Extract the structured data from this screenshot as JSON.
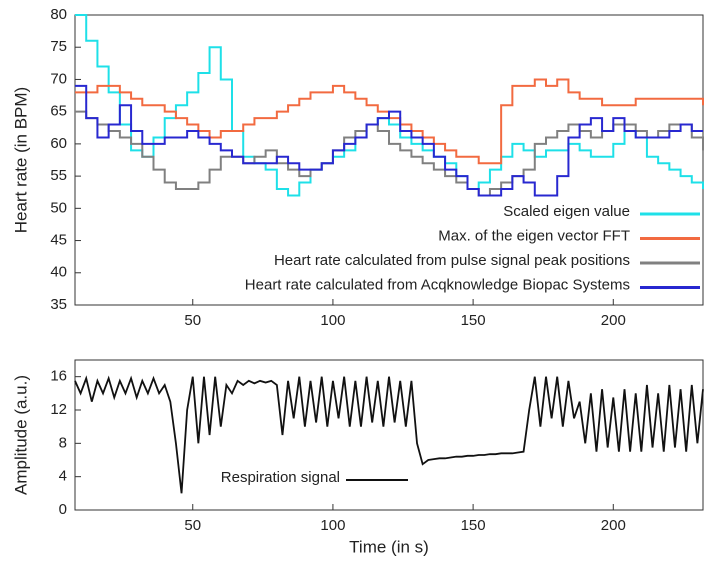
{
  "chart_data": [
    {
      "type": "line",
      "step": true,
      "ylabel": "Heart rate (in BPM)",
      "x": [
        8,
        12,
        16,
        20,
        24,
        28,
        32,
        36,
        40,
        44,
        48,
        52,
        56,
        60,
        64,
        68,
        72,
        76,
        80,
        84,
        88,
        92,
        96,
        100,
        104,
        108,
        112,
        116,
        120,
        124,
        128,
        132,
        136,
        140,
        144,
        148,
        152,
        156,
        160,
        164,
        168,
        172,
        176,
        180,
        184,
        188,
        192,
        196,
        200,
        204,
        208,
        212,
        216,
        220,
        224,
        228,
        232
      ],
      "series": [
        {
          "name": "Scaled eigen value",
          "color": "#1ee0e8",
          "values": [
            80,
            76,
            72,
            68,
            63,
            59,
            58,
            61,
            64,
            66,
            68,
            71,
            75,
            70,
            62,
            58,
            57,
            56,
            53,
            52,
            54,
            56,
            57,
            58,
            59,
            61,
            63,
            64,
            63,
            61,
            60,
            59,
            58,
            57,
            55,
            53,
            54,
            56,
            58,
            60,
            59,
            58,
            59,
            59,
            60,
            59,
            58,
            58,
            60,
            62,
            61,
            58,
            57,
            56,
            55,
            54,
            53
          ]
        },
        {
          "name": "Max. of the eigen vector FFT",
          "color": "#f26a40",
          "values": [
            68,
            68,
            69,
            69,
            68,
            67,
            66,
            66,
            65,
            64,
            63,
            62,
            61,
            62,
            62,
            63,
            64,
            64,
            65,
            66,
            67,
            68,
            68,
            69,
            68,
            67,
            66,
            65,
            64,
            63,
            62,
            61,
            60,
            59,
            58,
            58,
            57,
            57,
            66,
            69,
            69,
            70,
            69,
            70,
            68,
            67,
            67,
            66,
            66,
            66,
            67,
            67,
            67,
            67,
            67,
            67,
            66
          ]
        },
        {
          "name": "Heart rate calculated from pulse signal peak positions",
          "color": "#808080",
          "values": [
            65,
            64,
            63,
            62,
            61,
            60,
            58,
            56,
            54,
            53,
            53,
            54,
            56,
            58,
            58,
            57,
            58,
            59,
            57,
            56,
            55,
            56,
            57,
            59,
            61,
            62,
            63,
            62,
            60,
            59,
            58,
            57,
            56,
            55,
            54,
            53,
            52,
            53,
            54,
            55,
            56,
            60,
            61,
            62,
            63,
            62,
            61,
            62,
            63,
            63,
            62,
            61,
            62,
            63,
            63,
            61,
            59
          ]
        },
        {
          "name": "Heart rate calculated from Acqknowledge Biopac Systems",
          "color": "#2828d0",
          "values": [
            69,
            64,
            61,
            63,
            66,
            62,
            60,
            60,
            61,
            61,
            62,
            61,
            60,
            59,
            58,
            57,
            57,
            57,
            58,
            57,
            56,
            56,
            57,
            59,
            60,
            61,
            63,
            64,
            65,
            62,
            61,
            60,
            58,
            56,
            55,
            53,
            52,
            52,
            53,
            55,
            54,
            52,
            52,
            55,
            61,
            63,
            64,
            62,
            64,
            62,
            61,
            61,
            61,
            62,
            63,
            62,
            62
          ]
        }
      ],
      "xlim": [
        8,
        232
      ],
      "xticks": [
        50,
        100,
        150,
        200
      ],
      "ylim": [
        35,
        80
      ],
      "yticks": [
        35,
        40,
        45,
        50,
        55,
        60,
        65,
        70,
        75,
        80
      ],
      "legend": "lower right"
    },
    {
      "type": "line",
      "xlabel": "Time (in s)",
      "ylabel": "Amplitude (a.u.)",
      "x": [
        8,
        10,
        12,
        14,
        16,
        18,
        20,
        22,
        24,
        26,
        28,
        30,
        32,
        34,
        36,
        38,
        40,
        42,
        44,
        46,
        48,
        50,
        52,
        54,
        56,
        58,
        60,
        62,
        64,
        66,
        68,
        70,
        72,
        74,
        76,
        78,
        80,
        82,
        84,
        86,
        88,
        90,
        92,
        94,
        96,
        98,
        100,
        102,
        104,
        106,
        108,
        110,
        112,
        114,
        116,
        118,
        120,
        122,
        124,
        126,
        128,
        130,
        132,
        134,
        136,
        138,
        140,
        142,
        144,
        146,
        148,
        150,
        152,
        154,
        156,
        158,
        160,
        162,
        164,
        166,
        168,
        170,
        172,
        174,
        176,
        178,
        180,
        182,
        184,
        186,
        188,
        190,
        192,
        194,
        196,
        198,
        200,
        202,
        204,
        206,
        208,
        210,
        212,
        214,
        216,
        218,
        220,
        222,
        224,
        226,
        228,
        230,
        232
      ],
      "series": [
        {
          "name": "Respiration signal",
          "color": "#111111",
          "values": [
            15.5,
            14,
            15.8,
            13,
            15.5,
            14,
            15.8,
            13.5,
            15.5,
            14,
            15.8,
            13.5,
            15.5,
            14,
            15.8,
            14,
            15,
            13,
            8,
            2,
            12,
            16,
            8,
            16,
            9,
            16,
            10,
            15,
            14,
            15.5,
            15,
            15.5,
            15.2,
            15.5,
            15.3,
            15.5,
            15,
            9,
            15.5,
            11,
            16,
            10,
            15.5,
            10.5,
            16,
            10,
            15.5,
            11,
            16,
            10,
            15.5,
            10,
            16,
            10.5,
            15.5,
            10,
            16,
            10.5,
            15.5,
            10,
            15.5,
            8,
            5.5,
            6,
            6.1,
            6.2,
            6.2,
            6.3,
            6.4,
            6.4,
            6.5,
            6.5,
            6.6,
            6.6,
            6.7,
            6.7,
            6.8,
            6.8,
            6.8,
            6.9,
            7,
            12,
            16,
            10,
            16,
            11,
            16,
            10,
            15.5,
            11,
            13,
            8,
            14,
            7,
            14.5,
            7.5,
            13.5,
            7,
            14.5,
            7,
            14,
            7,
            15,
            7.5,
            14,
            7,
            15,
            7.5,
            14.5,
            7,
            15,
            8,
            14.5
          ]
        }
      ],
      "xlim": [
        8,
        232
      ],
      "xticks": [
        50,
        100,
        150,
        200
      ],
      "ylim": [
        0,
        18
      ],
      "yticks": [
        0,
        4,
        8,
        12,
        16
      ],
      "legend": "lower center"
    }
  ]
}
